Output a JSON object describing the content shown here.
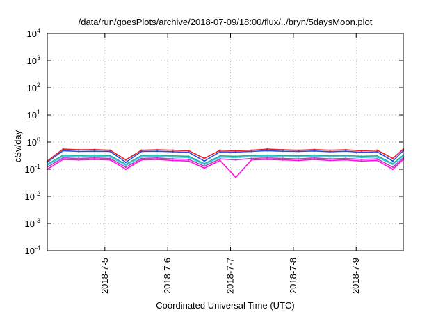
{
  "chart_data": {
    "type": "line",
    "title": "/data/run/goesPlots/archive/2018-07-09/18:00/flux/../bryn/5daysMoon.plot",
    "xlabel": "Coordinated Universal Time (UTC)",
    "ylabel": "cSv/day",
    "yscale": "log",
    "ylim": [
      0.0001,
      10000
    ],
    "xlim": [
      "2018-07-04 02:00",
      "2018-07-09 18:00"
    ],
    "x_ticks": [
      {
        "label": "2018-7-5",
        "date": "2018-07-05 00:00"
      },
      {
        "label": "2018-7-6",
        "date": "2018-07-06 00:00"
      },
      {
        "label": "2018-7-7",
        "date": "2018-07-07 00:00"
      },
      {
        "label": "2018-7-8",
        "date": "2018-07-08 00:00"
      },
      {
        "label": "2018-7-9",
        "date": "2018-07-09 00:00"
      }
    ],
    "y_ticks": [
      {
        "base": "10",
        "exp": "-4"
      },
      {
        "base": "10",
        "exp": "-3"
      },
      {
        "base": "10",
        "exp": "-2"
      },
      {
        "base": "10",
        "exp": "-1"
      },
      {
        "base": "10",
        "exp": "0"
      },
      {
        "base": "10",
        "exp": "1"
      },
      {
        "base": "10",
        "exp": "2"
      },
      {
        "base": "10",
        "exp": "3"
      },
      {
        "base": "10",
        "exp": "4"
      }
    ],
    "grid": true,
    "x": [
      "2018-07-04 02:00",
      "2018-07-04 08:00",
      "2018-07-04 14:00",
      "2018-07-04 20:00",
      "2018-07-05 02:00",
      "2018-07-05 08:00",
      "2018-07-05 14:00",
      "2018-07-05 20:00",
      "2018-07-06 02:00",
      "2018-07-06 08:00",
      "2018-07-06 14:00",
      "2018-07-06 20:00",
      "2018-07-07 02:00",
      "2018-07-07 08:00",
      "2018-07-07 14:00",
      "2018-07-07 20:00",
      "2018-07-08 02:00",
      "2018-07-08 08:00",
      "2018-07-08 14:00",
      "2018-07-08 20:00",
      "2018-07-09 02:00",
      "2018-07-09 08:00",
      "2018-07-09 14:00",
      "2018-07-09 18:00"
    ],
    "series": [
      {
        "color": "#e8202a",
        "values": [
          0.2,
          0.55,
          0.52,
          0.53,
          0.5,
          0.22,
          0.5,
          0.52,
          0.5,
          0.48,
          0.25,
          0.5,
          0.48,
          0.5,
          0.55,
          0.52,
          0.5,
          0.53,
          0.5,
          0.52,
          0.48,
          0.5,
          0.25,
          0.55
        ]
      },
      {
        "color": "#2050e0",
        "values": [
          0.18,
          0.48,
          0.45,
          0.46,
          0.45,
          0.18,
          0.45,
          0.46,
          0.44,
          0.42,
          0.2,
          0.44,
          0.43,
          0.45,
          0.48,
          0.46,
          0.45,
          0.47,
          0.44,
          0.46,
          0.42,
          0.44,
          0.2,
          0.48
        ]
      },
      {
        "color": "#20b090",
        "values": [
          0.15,
          0.33,
          0.32,
          0.33,
          0.32,
          0.15,
          0.32,
          0.33,
          0.31,
          0.3,
          0.16,
          0.31,
          0.3,
          0.32,
          0.33,
          0.32,
          0.31,
          0.33,
          0.31,
          0.32,
          0.3,
          0.31,
          0.16,
          0.33
        ]
      },
      {
        "color": "#40c8e8",
        "values": [
          0.14,
          0.3,
          0.29,
          0.3,
          0.29,
          0.14,
          0.29,
          0.3,
          0.28,
          0.27,
          0.15,
          0.28,
          0.27,
          0.29,
          0.3,
          0.29,
          0.28,
          0.3,
          0.28,
          0.29,
          0.27,
          0.28,
          0.15,
          0.3
        ]
      },
      {
        "color": "#c040c0",
        "values": [
          0.12,
          0.26,
          0.25,
          0.26,
          0.25,
          0.12,
          0.25,
          0.26,
          0.24,
          0.23,
          0.13,
          0.24,
          0.22,
          0.25,
          0.26,
          0.25,
          0.24,
          0.26,
          0.24,
          0.25,
          0.23,
          0.24,
          0.12,
          0.26
        ]
      },
      {
        "color": "#ff10e0",
        "values": [
          0.1,
          0.23,
          0.22,
          0.23,
          0.22,
          0.1,
          0.22,
          0.23,
          0.21,
          0.2,
          0.11,
          0.21,
          0.05,
          0.22,
          0.23,
          0.22,
          0.21,
          0.23,
          0.21,
          0.22,
          0.2,
          0.21,
          0.1,
          0.23
        ]
      }
    ]
  }
}
